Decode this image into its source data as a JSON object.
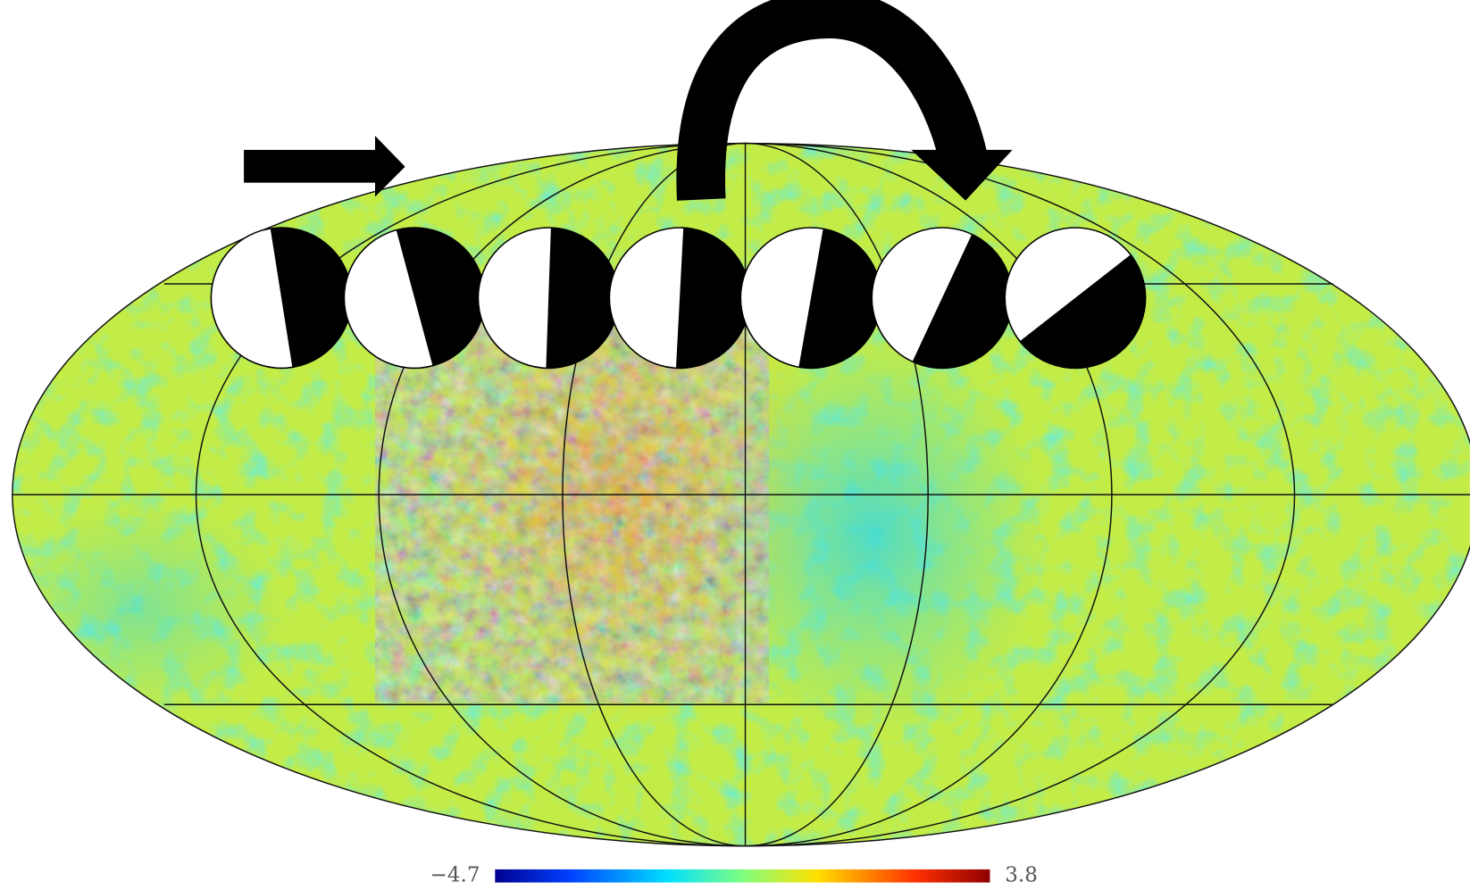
{
  "colorbar": {
    "min_label": "−4.7",
    "max_label": "3.8"
  }
}
